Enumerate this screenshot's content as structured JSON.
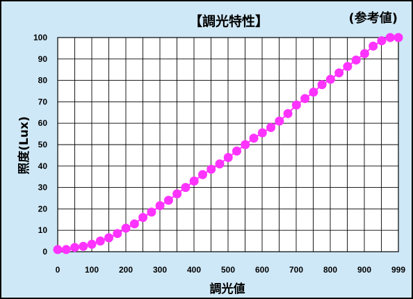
{
  "chart_data": {
    "type": "line",
    "title": "【調光特性】",
    "note": "(参考値)",
    "xlabel": "調光値",
    "ylabel": "照度(Lux)",
    "xlim": [
      0,
      999
    ],
    "ylim": [
      0,
      100
    ],
    "x_ticks": [
      "0",
      "100",
      "200",
      "300",
      "400",
      "500",
      "600",
      "700",
      "800",
      "900",
      "999"
    ],
    "y_ticks": [
      "0",
      "10",
      "20",
      "30",
      "40",
      "50",
      "60",
      "70",
      "80",
      "90",
      "100"
    ],
    "grid": true,
    "marker_color": "#ff33ff",
    "series": [
      {
        "x": [
          0,
          25,
          50,
          75,
          100,
          125,
          150,
          175,
          200,
          225,
          250,
          275,
          300,
          325,
          350,
          375,
          400,
          425,
          450,
          475,
          500,
          525,
          550,
          575,
          600,
          625,
          650,
          675,
          700,
          725,
          750,
          775,
          800,
          825,
          850,
          875,
          900,
          925,
          950,
          975,
          999
        ],
        "values": [
          1,
          1,
          2,
          2.5,
          3.5,
          5,
          6.5,
          8.5,
          11,
          13,
          16,
          18.5,
          21.5,
          24,
          27,
          30,
          33,
          36,
          38.5,
          41,
          44,
          47,
          50,
          53,
          55.5,
          58,
          61,
          64.5,
          68.5,
          71.5,
          74.5,
          78,
          80.5,
          83.5,
          86.5,
          89.5,
          92.5,
          96,
          98.5,
          100,
          100
        ]
      }
    ]
  }
}
